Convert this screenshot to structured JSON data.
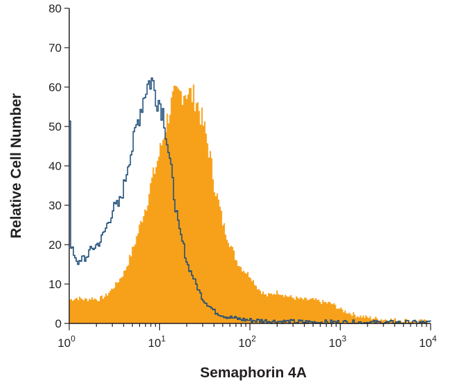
{
  "chart_data": {
    "type": "area",
    "title": "",
    "xlabel": "Semaphorin 4A",
    "ylabel": "Relative Cell Number",
    "x_scale": "log",
    "xlim": [
      1,
      10000
    ],
    "ylim": [
      0,
      80
    ],
    "y_ticks": [
      "0",
      "10",
      "20",
      "30",
      "40",
      "50",
      "60",
      "70",
      "80"
    ],
    "x_ticks": [
      {
        "base": "10",
        "exp": "0"
      },
      {
        "base": "10",
        "exp": "1"
      },
      {
        "base": "10",
        "exp": "2"
      },
      {
        "base": "10",
        "exp": "3"
      },
      {
        "base": "10",
        "exp": "4"
      }
    ],
    "grid": false,
    "legend": "none",
    "series": [
      {
        "style": "filled",
        "color": "#f7a11a",
        "points": [
          [
            1.0,
            6
          ],
          [
            1.2,
            6.5
          ],
          [
            1.5,
            6
          ],
          [
            1.8,
            6.5
          ],
          [
            2.0,
            6
          ],
          [
            2.5,
            7
          ],
          [
            3.0,
            9
          ],
          [
            3.5,
            11
          ],
          [
            4.0,
            13
          ],
          [
            4.5,
            16
          ],
          [
            5.0,
            19
          ],
          [
            5.5,
            22
          ],
          [
            6.0,
            25
          ],
          [
            6.5,
            28
          ],
          [
            7.0,
            30
          ],
          [
            7.5,
            33
          ],
          [
            8.0,
            36
          ],
          [
            9.0,
            40
          ],
          [
            10.0,
            44
          ],
          [
            11.0,
            48
          ],
          [
            12.0,
            52
          ],
          [
            13.0,
            55
          ],
          [
            14.0,
            57
          ],
          [
            16.0,
            58
          ],
          [
            18.0,
            59
          ],
          [
            20.0,
            59
          ],
          [
            22.0,
            58
          ],
          [
            25.0,
            57
          ],
          [
            28.0,
            53
          ],
          [
            32.0,
            48
          ],
          [
            36.0,
            42
          ],
          [
            40.0,
            35
          ],
          [
            45.0,
            30
          ],
          [
            50.0,
            25
          ],
          [
            60.0,
            20
          ],
          [
            70.0,
            16
          ],
          [
            80.0,
            14
          ],
          [
            100.0,
            12
          ],
          [
            120.0,
            9
          ],
          [
            150.0,
            7
          ],
          [
            200.0,
            8
          ],
          [
            250.0,
            7
          ],
          [
            300.0,
            6.5
          ],
          [
            400.0,
            6
          ],
          [
            500.0,
            6
          ],
          [
            600.0,
            5.5
          ],
          [
            800.0,
            5
          ],
          [
            1000.0,
            3.5
          ],
          [
            1500.0,
            2
          ],
          [
            2000.0,
            1.5
          ],
          [
            3000.0,
            1
          ],
          [
            5000.0,
            0.8
          ],
          [
            8000.0,
            0.5
          ],
          [
            10000.0,
            0.5
          ]
        ]
      },
      {
        "style": "line",
        "color": "#1f4e79",
        "points": [
          [
            1.0,
            50
          ],
          [
            1.03,
            19
          ],
          [
            1.1,
            18
          ],
          [
            1.2,
            16
          ],
          [
            1.3,
            15
          ],
          [
            1.4,
            17
          ],
          [
            1.5,
            16
          ],
          [
            1.6,
            18
          ],
          [
            1.8,
            19
          ],
          [
            2.0,
            20
          ],
          [
            2.2,
            21
          ],
          [
            2.5,
            24
          ],
          [
            2.8,
            27
          ],
          [
            3.0,
            29
          ],
          [
            3.5,
            30
          ],
          [
            4.0,
            35
          ],
          [
            4.5,
            42
          ],
          [
            5.0,
            45
          ],
          [
            5.5,
            50
          ],
          [
            6.0,
            54
          ],
          [
            6.5,
            57
          ],
          [
            7.0,
            60
          ],
          [
            7.5,
            61
          ],
          [
            8.0,
            62
          ],
          [
            9.0,
            58
          ],
          [
            10.0,
            56
          ],
          [
            11.0,
            53
          ],
          [
            12.0,
            46
          ],
          [
            13.0,
            40
          ],
          [
            14.0,
            34
          ],
          [
            15.0,
            29
          ],
          [
            16.0,
            24
          ],
          [
            18.0,
            20
          ],
          [
            20.0,
            15
          ],
          [
            23.0,
            12
          ],
          [
            26.0,
            9
          ],
          [
            30.0,
            6
          ],
          [
            35.0,
            4.5
          ],
          [
            40.0,
            3
          ],
          [
            50.0,
            2
          ],
          [
            60.0,
            1.5
          ],
          [
            80.0,
            1
          ],
          [
            100.0,
            0.8
          ],
          [
            200.0,
            0.5
          ],
          [
            500.0,
            0.3
          ],
          [
            1000.0,
            0.3
          ],
          [
            3000.0,
            0.2
          ],
          [
            10000.0,
            0.2
          ]
        ]
      }
    ]
  }
}
